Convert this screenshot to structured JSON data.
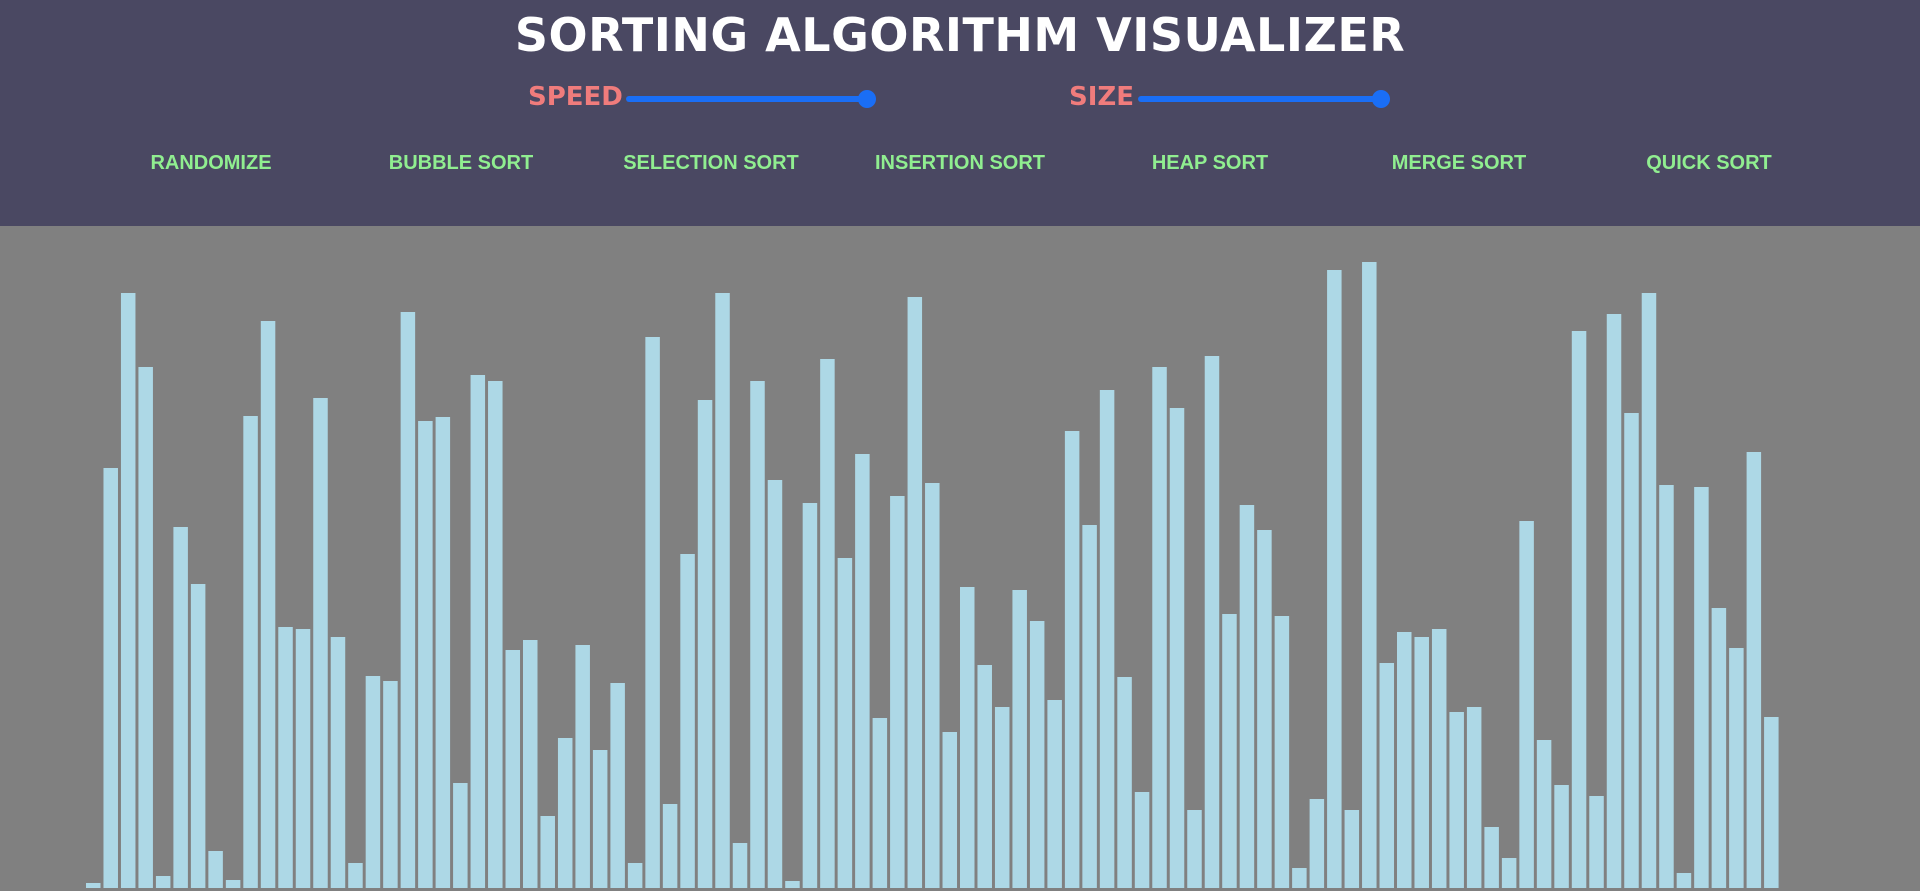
{
  "app": {
    "title": "SORTING ALGORITHM VISUALIZER"
  },
  "controls": {
    "speed": {
      "label": "SPEED",
      "value": 1.0
    },
    "size": {
      "label": "SIZE",
      "value": 1.0
    }
  },
  "buttons": [
    {
      "id": "randomize",
      "label": "RANDOMIZE"
    },
    {
      "id": "bubble",
      "label": "BUBBLE SORT"
    },
    {
      "id": "selection",
      "label": "SELECTION SORT"
    },
    {
      "id": "insertion",
      "label": "INSERTION SORT"
    },
    {
      "id": "heap",
      "label": "HEAP SORT"
    },
    {
      "id": "merge",
      "label": "MERGE SORT"
    },
    {
      "id": "quick",
      "label": "QUICK SORT"
    }
  ],
  "colors": {
    "header_bg": "#4a4862",
    "canvas_bg": "#808080",
    "bar": "#add8e6",
    "title": "#ffffff",
    "control_label": "#f07c7c",
    "slider": "#1a6ef5",
    "button_text": "#90ee90"
  },
  "chart_data": {
    "type": "bar",
    "values": [
      5,
      420,
      595,
      521,
      12,
      361,
      304,
      37,
      8,
      472,
      567,
      261,
      259,
      490,
      251,
      25,
      212,
      207,
      576,
      467,
      471,
      105,
      513,
      507,
      238,
      248,
      72,
      150,
      243,
      138,
      205,
      25,
      551,
      84,
      334,
      488,
      595,
      45,
      507,
      408,
      7,
      385,
      529,
      330,
      434,
      170,
      392,
      591,
      405,
      156,
      301,
      223,
      181,
      298,
      267,
      188,
      457,
      363,
      498,
      211,
      96,
      521,
      480,
      78,
      532,
      274,
      383,
      358,
      272,
      20,
      89,
      618,
      78,
      626,
      225,
      256,
      251,
      259,
      176,
      181,
      61,
      30,
      367,
      148,
      103,
      557,
      92,
      574,
      475,
      595,
      403,
      15,
      401,
      280,
      240,
      436,
      171
    ],
    "ylim": [
      0,
      626
    ]
  }
}
